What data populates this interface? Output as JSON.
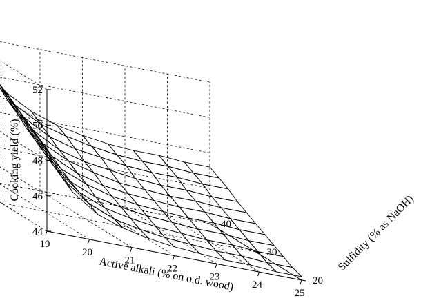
{
  "chart_data": {
    "type": "surface",
    "title": "",
    "xlabel": "Active alkali (% on o.d. wood)",
    "ylabel": "Sulfidity (% as NaOH)",
    "zlabel": "Cooking yield (%)",
    "x_ticks": [
      "25",
      "24",
      "23",
      "22",
      "21",
      "20",
      "19"
    ],
    "y_ticks": [
      "20",
      "30",
      "40"
    ],
    "z_ticks": [
      "44",
      "46",
      "48",
      "50",
      "52"
    ],
    "x_range": [
      19,
      25
    ],
    "y_range": [
      20,
      40
    ],
    "z_range": [
      44,
      52
    ],
    "x": [
      25.0,
      24.4,
      23.8,
      23.2,
      22.6,
      22.0,
      21.4,
      20.8,
      20.2,
      19.6,
      19.0
    ],
    "y": [
      20,
      22,
      24,
      26,
      28,
      30,
      32,
      34,
      36,
      38,
      40
    ],
    "z": [
      [
        44.2,
        44.2,
        44.3,
        44.3,
        44.4,
        44.5,
        44.7,
        45.0,
        45.5,
        46.5,
        48.6
      ],
      [
        44.4,
        44.4,
        44.5,
        44.5,
        44.6,
        44.7,
        44.9,
        45.2,
        45.8,
        46.9,
        49.0
      ],
      [
        44.7,
        44.7,
        44.8,
        44.8,
        44.9,
        45.0,
        45.2,
        45.5,
        46.1,
        47.3,
        49.4
      ],
      [
        45.0,
        45.0,
        45.1,
        45.1,
        45.2,
        45.3,
        45.5,
        45.8,
        46.4,
        47.7,
        49.8
      ],
      [
        45.3,
        45.3,
        45.4,
        45.4,
        45.5,
        45.6,
        45.8,
        46.2,
        46.8,
        48.1,
        50.2
      ],
      [
        45.6,
        45.6,
        45.7,
        45.7,
        45.8,
        45.9,
        46.1,
        46.5,
        47.2,
        48.5,
        50.6
      ],
      [
        45.9,
        45.9,
        46.0,
        46.0,
        46.1,
        46.2,
        46.5,
        46.9,
        47.6,
        49.0,
        51.1
      ],
      [
        46.2,
        46.2,
        46.3,
        46.3,
        46.4,
        46.6,
        46.8,
        47.2,
        48.0,
        49.4,
        51.5
      ],
      [
        46.6,
        46.6,
        46.7,
        46.7,
        46.8,
        47.0,
        47.2,
        47.6,
        48.4,
        49.9,
        52.0
      ],
      [
        46.9,
        46.9,
        47.0,
        47.0,
        47.1,
        47.3,
        47.6,
        48.0,
        48.8,
        50.4,
        52.4
      ],
      [
        47.2,
        47.2,
        47.3,
        47.3,
        47.4,
        47.6,
        47.9,
        48.4,
        49.2,
        50.8,
        52.8
      ]
    ]
  }
}
